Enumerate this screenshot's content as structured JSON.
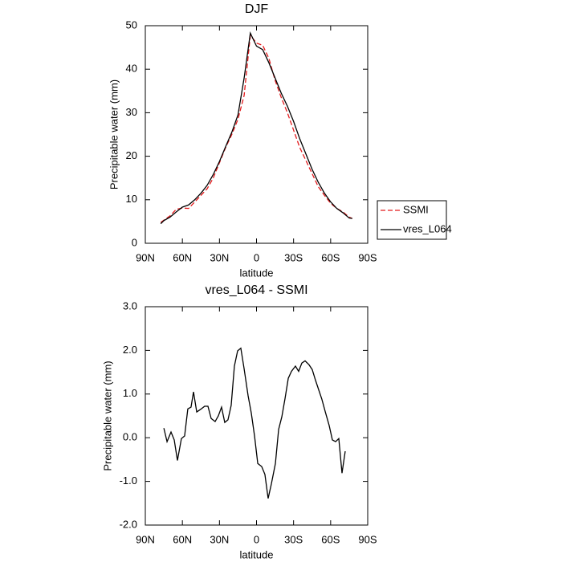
{
  "chart_data": [
    {
      "type": "line",
      "title": "DJF",
      "xlabel": "latitude",
      "ylabel": "Precipitable water (mm)",
      "x": [
        77.5,
        75,
        70,
        65,
        60,
        55,
        50,
        45,
        40,
        35,
        30,
        25,
        20,
        15,
        10,
        5,
        0,
        -5,
        -10,
        -15,
        -20,
        -25,
        -30,
        -35,
        -40,
        -45,
        -50,
        -55,
        -60,
        -65,
        -70,
        -75,
        -77.5
      ],
      "series": [
        {
          "name": "SSMI",
          "color": "#e31a1c",
          "linestyle": "dashed",
          "values": [
            4.8,
            5.3,
            6.3,
            7.8,
            8.1,
            8.0,
            9.5,
            11,
            12.5,
            15,
            18.5,
            22,
            25,
            28.5,
            34,
            47.8,
            46,
            45.5,
            42.5,
            37.5,
            33.5,
            30,
            26,
            22,
            19,
            16,
            13,
            11,
            9.2,
            8,
            7.2,
            6,
            5.7
          ]
        },
        {
          "name": "vres_L064",
          "color": "#000000",
          "linestyle": "solid",
          "values": [
            4.5,
            5.2,
            6.0,
            7.2,
            8.3,
            8.8,
            10.0,
            11.5,
            13.3,
            15.8,
            18.8,
            22.2,
            25.5,
            29.5,
            38,
            48.3,
            45.3,
            44.5,
            41.5,
            38,
            34.5,
            31.5,
            28,
            24,
            20.5,
            17,
            14,
            11.5,
            9.5,
            8,
            7,
            5.8,
            5.7
          ]
        }
      ],
      "xlim": [
        90,
        -90
      ],
      "xticks": [
        {
          "value": 90,
          "label": "90N"
        },
        {
          "value": 60,
          "label": "60N"
        },
        {
          "value": 30,
          "label": "30N"
        },
        0,
        {
          "value": -30,
          "label": "30S"
        },
        {
          "value": -60,
          "label": "60S"
        },
        {
          "value": -90,
          "label": "90S"
        }
      ],
      "ylim": [
        0,
        50
      ],
      "yticks": [
        0,
        10,
        20,
        30,
        40,
        50
      ],
      "legend": "right"
    },
    {
      "type": "line",
      "title": "vres_L064 - SSMI",
      "xlabel": "latitude",
      "ylabel": "Precipitable water (mm)",
      "x": [
        75,
        72.4,
        69.2,
        66.6,
        64,
        60.8,
        58.2,
        55.6,
        53,
        51,
        48.4,
        45.2,
        42,
        39.3,
        36.7,
        33.5,
        30.9,
        28.3,
        25.7,
        23.1,
        20.5,
        17.9,
        15.3,
        12.7,
        10.1,
        6.8,
        4.2,
        1.6,
        -1.0,
        -4.2,
        -6.8,
        -9.4,
        -12,
        -15.3,
        -17.9,
        -20.5,
        -23.1,
        -25.7,
        -28.3,
        -31.5,
        -34.1,
        -36.7,
        -39.3,
        -42.5,
        -45.1,
        -47.7,
        -50.3,
        -52.9,
        -55.5,
        -58.8,
        -61.4,
        -64,
        -66.6,
        -69.2,
        -71.8
      ],
      "series": [
        {
          "color": "#000000",
          "linestyle": "solid",
          "values": [
            0.22,
            -0.09,
            0.13,
            -0.05,
            -0.52,
            -0.02,
            0.04,
            0.66,
            0.7,
            1.05,
            0.59,
            0.65,
            0.72,
            0.72,
            0.44,
            0.37,
            0.5,
            0.7,
            0.35,
            0.41,
            0.74,
            1.64,
            1.99,
            2.05,
            1.59,
            0.96,
            0.56,
            0.04,
            -0.59,
            -0.66,
            -0.84,
            -1.39,
            -1.06,
            -0.59,
            0.19,
            0.48,
            0.9,
            1.36,
            1.52,
            1.64,
            1.52,
            1.71,
            1.76,
            1.67,
            1.56,
            1.32,
            1.1,
            0.88,
            0.61,
            0.28,
            -0.05,
            -0.09,
            -0.02,
            -0.81,
            -0.31
          ]
        }
      ],
      "xlim": [
        90,
        -90
      ],
      "xticks": [
        {
          "value": 90,
          "label": "90N"
        },
        {
          "value": 60,
          "label": "60N"
        },
        {
          "value": 30,
          "label": "30N"
        },
        0,
        {
          "value": -30,
          "label": "30S"
        },
        {
          "value": -60,
          "label": "60S"
        },
        {
          "value": -90,
          "label": "90S"
        }
      ],
      "ylim": [
        -2,
        3
      ],
      "yticks": [
        {
          "value": -2,
          "label": "-2.0"
        },
        {
          "value": -1,
          "label": "-1.0"
        },
        {
          "value": 0,
          "label": "0.0"
        },
        {
          "value": 1,
          "label": "1.0"
        },
        {
          "value": 2,
          "label": "2.0"
        },
        {
          "value": 3,
          "label": "3.0"
        }
      ]
    }
  ]
}
